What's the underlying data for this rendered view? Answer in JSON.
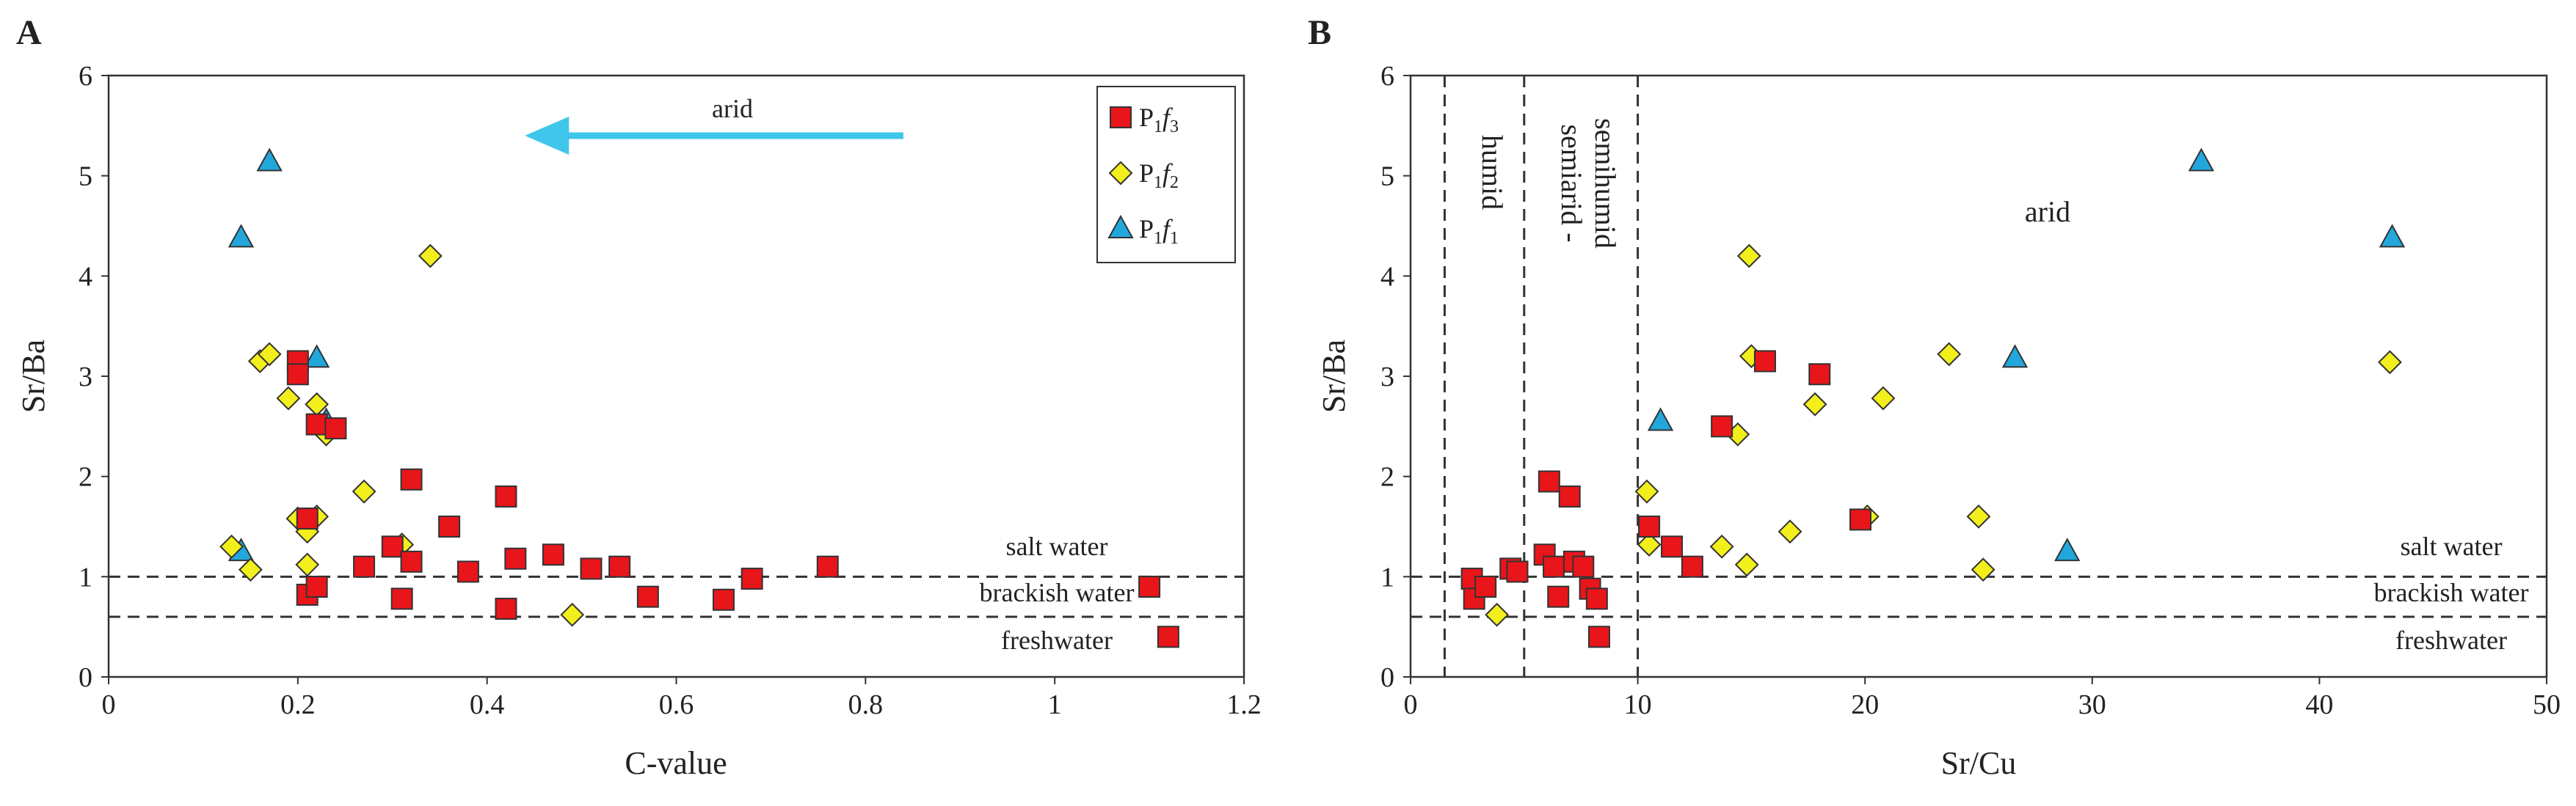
{
  "chart_data": [
    {
      "panel": "A",
      "type": "scatter",
      "xlabel": "C-value",
      "ylabel": "Sr/Ba",
      "xlim": [
        0,
        1.2
      ],
      "ylim": [
        0,
        6
      ],
      "xticks": [
        0,
        0.2,
        0.4,
        0.6,
        0.8,
        1,
        1.2
      ],
      "yticks": [
        0,
        1,
        2,
        3,
        4,
        5,
        6
      ],
      "grid": false,
      "legend_position": "top-right",
      "hlines": [
        1.0,
        0.6
      ],
      "annotations": {
        "salt": "salt water",
        "brackish": "brackish water",
        "fresh": "freshwater",
        "arid": "arid"
      },
      "arrow": {
        "from": [
          0.84,
          5.4
        ],
        "to": [
          0.44,
          5.4
        ],
        "color": "#3fc6ea"
      },
      "series": [
        {
          "name": "P1f3",
          "marker": "square",
          "color": "#e8151b",
          "points": [
            [
              0.2,
              3.15
            ],
            [
              0.2,
              3.02
            ],
            [
              0.21,
              1.58
            ],
            [
              0.21,
              0.82
            ],
            [
              0.22,
              0.9
            ],
            [
              0.22,
              2.52
            ],
            [
              0.24,
              2.48
            ],
            [
              0.27,
              1.1
            ],
            [
              0.3,
              1.3
            ],
            [
              0.31,
              0.78
            ],
            [
              0.32,
              1.97
            ],
            [
              0.32,
              1.15
            ],
            [
              0.36,
              1.5
            ],
            [
              0.38,
              1.05
            ],
            [
              0.42,
              1.8
            ],
            [
              0.42,
              0.68
            ],
            [
              0.43,
              1.18
            ],
            [
              0.47,
              1.22
            ],
            [
              0.51,
              1.08
            ],
            [
              0.54,
              1.1
            ],
            [
              0.57,
              0.8
            ],
            [
              0.65,
              0.77
            ],
            [
              0.68,
              0.98
            ],
            [
              0.76,
              1.1
            ],
            [
              1.1,
              0.9
            ],
            [
              1.12,
              0.4
            ]
          ]
        },
        {
          "name": "P1f2",
          "marker": "diamond",
          "color": "#f2ef1c",
          "points": [
            [
              0.13,
              1.3
            ],
            [
              0.15,
              1.07
            ],
            [
              0.16,
              3.15
            ],
            [
              0.17,
              3.22
            ],
            [
              0.19,
              2.78
            ],
            [
              0.2,
              1.58
            ],
            [
              0.21,
              1.12
            ],
            [
              0.21,
              1.45
            ],
            [
              0.22,
              1.6
            ],
            [
              0.22,
              2.72
            ],
            [
              0.23,
              2.42
            ],
            [
              0.27,
              1.85
            ],
            [
              0.31,
              1.32
            ],
            [
              0.34,
              4.2
            ],
            [
              0.49,
              0.62
            ]
          ]
        },
        {
          "name": "P1f1",
          "marker": "triangle",
          "color": "#22a7dd",
          "points": [
            [
              0.14,
              1.25
            ],
            [
              0.14,
              4.38
            ],
            [
              0.17,
              5.14
            ],
            [
              0.22,
              3.18
            ],
            [
              0.23,
              2.55
            ]
          ]
        }
      ],
      "legend": [
        {
          "base": "P",
          "sub1": "1",
          "mid": "f",
          "sub2": "3"
        },
        {
          "base": "P",
          "sub1": "1",
          "mid": "f",
          "sub2": "2"
        },
        {
          "base": "P",
          "sub1": "1",
          "mid": "f",
          "sub2": "1"
        }
      ]
    },
    {
      "panel": "B",
      "type": "scatter",
      "xlabel": "Sr/Cu",
      "ylabel": "Sr/Ba",
      "xlim": [
        0,
        50
      ],
      "ylim": [
        0,
        6
      ],
      "xticks": [
        0,
        10,
        20,
        30,
        40,
        50
      ],
      "yticks": [
        0,
        1,
        2,
        3,
        4,
        5,
        6
      ],
      "grid": false,
      "hlines": [
        1.0,
        0.6
      ],
      "vlines": [
        1.5,
        5,
        10
      ],
      "annotations": {
        "salt": "salt water",
        "brackish": "brackish water",
        "fresh": "freshwater",
        "arid": "arid",
        "humid": "humid",
        "semi1": "semiarid -",
        "semi2": "semihumid"
      },
      "series": [
        {
          "name": "P1f3",
          "marker": "square",
          "color": "#e8151b",
          "points": [
            [
              2.7,
              0.98
            ],
            [
              2.8,
              0.78
            ],
            [
              3.3,
              0.9
            ],
            [
              4.4,
              1.08
            ],
            [
              4.7,
              1.05
            ],
            [
              5.9,
              1.22
            ],
            [
              6.1,
              1.95
            ],
            [
              6.3,
              1.1
            ],
            [
              6.5,
              0.8
            ],
            [
              7.0,
              1.8
            ],
            [
              7.2,
              1.15
            ],
            [
              7.6,
              1.1
            ],
            [
              7.9,
              0.88
            ],
            [
              8.2,
              0.78
            ],
            [
              8.3,
              0.4
            ],
            [
              10.5,
              1.5
            ],
            [
              11.5,
              1.3
            ],
            [
              12.4,
              1.1
            ],
            [
              13.7,
              2.5
            ],
            [
              15.6,
              3.15
            ],
            [
              18.0,
              3.02
            ],
            [
              19.8,
              1.57
            ]
          ]
        },
        {
          "name": "P1f2",
          "marker": "diamond",
          "color": "#f2ef1c",
          "points": [
            [
              3.8,
              0.62
            ],
            [
              10.4,
              1.85
            ],
            [
              10.5,
              1.32
            ],
            [
              13.7,
              1.3
            ],
            [
              14.4,
              2.42
            ],
            [
              14.8,
              1.12
            ],
            [
              14.9,
              4.2
            ],
            [
              15.0,
              3.2
            ],
            [
              16.7,
              1.45
            ],
            [
              17.8,
              2.72
            ],
            [
              20.1,
              1.6
            ],
            [
              20.8,
              2.78
            ],
            [
              23.7,
              3.22
            ],
            [
              25.0,
              1.6
            ],
            [
              25.2,
              1.07
            ],
            [
              43.1,
              3.14
            ]
          ]
        },
        {
          "name": "P1f1",
          "marker": "triangle",
          "color": "#22a7dd",
          "points": [
            [
              11.0,
              2.55
            ],
            [
              26.6,
              3.18
            ],
            [
              28.9,
              1.25
            ],
            [
              34.8,
              5.14
            ],
            [
              43.2,
              4.38
            ]
          ]
        }
      ]
    }
  ]
}
